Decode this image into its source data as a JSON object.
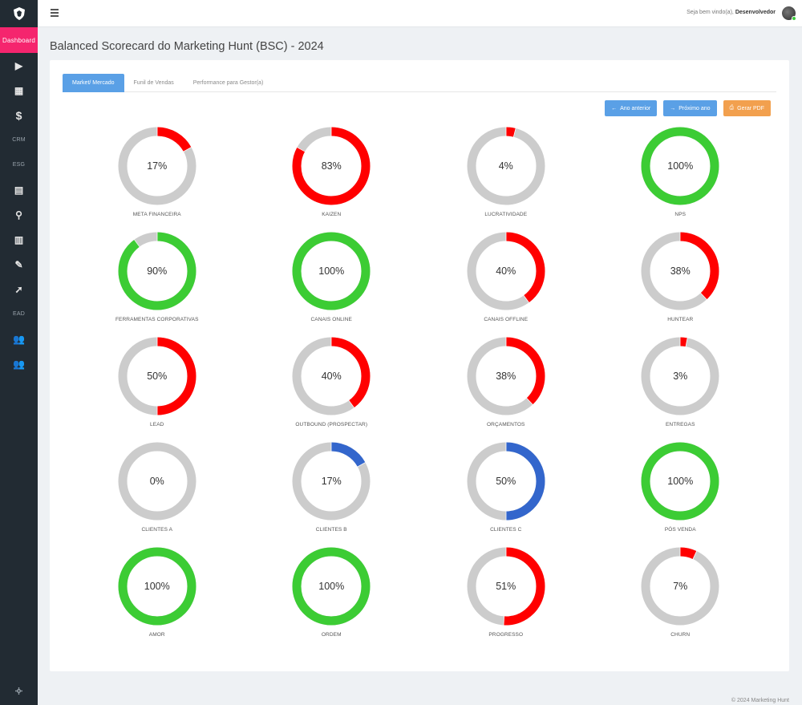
{
  "sidebar": {
    "items": [
      {
        "type": "text",
        "label": "Dashboard",
        "active": true,
        "icon": "dashboard-label"
      },
      {
        "type": "icon",
        "icon": "play-icon",
        "glyph": "▶"
      },
      {
        "type": "icon",
        "icon": "calendar-icon",
        "glyph": "▦"
      },
      {
        "type": "icon",
        "icon": "dollar-icon",
        "glyph": "$"
      },
      {
        "type": "text",
        "label": "CRM"
      },
      {
        "type": "text",
        "label": "ESG"
      },
      {
        "type": "icon",
        "icon": "building-icon",
        "glyph": "▤"
      },
      {
        "type": "icon",
        "icon": "search-icon",
        "glyph": "⚲"
      },
      {
        "type": "icon",
        "icon": "clipboard-icon",
        "glyph": "▥"
      },
      {
        "type": "icon",
        "icon": "pencil-icon",
        "glyph": "✎"
      },
      {
        "type": "icon",
        "icon": "rocket-icon",
        "glyph": "➚"
      },
      {
        "type": "text",
        "label": "EAD"
      },
      {
        "type": "icon",
        "icon": "users-icon",
        "glyph": "👥"
      },
      {
        "type": "icon",
        "icon": "users-icon",
        "glyph": "👥"
      }
    ],
    "bottom_icon": "settings-icon"
  },
  "topbar": {
    "greeting": "Seja bem vindo(a),",
    "user": "Desenvolvedor"
  },
  "page": {
    "title": "Balanced Scorecard do Marketing Hunt (BSC) - 2024"
  },
  "tabs": [
    {
      "label": "Market/ Mercado",
      "active": true
    },
    {
      "label": "Funil de Vendas",
      "active": false
    },
    {
      "label": "Performance para Gestor(a)",
      "active": false
    }
  ],
  "buttons": {
    "prev": "Ano anterior",
    "next": "Próximo ano",
    "pdf": "Gerar PDF"
  },
  "colors": {
    "red": "#ff0000",
    "green": "#3ccc34",
    "blue": "#3366cc",
    "track": "#cccccc"
  },
  "metrics": [
    {
      "label": "META FINANCEIRA",
      "percent": 17,
      "color": "red"
    },
    {
      "label": "KAIZEN",
      "percent": 83,
      "color": "red"
    },
    {
      "label": "LUCRATIVIDADE",
      "percent": 4,
      "color": "red"
    },
    {
      "label": "NPS",
      "percent": 100,
      "color": "green"
    },
    {
      "label": "FERRAMENTAS CORPORATIVAS",
      "percent": 90,
      "color": "green"
    },
    {
      "label": "CANAIS ONLINE",
      "percent": 100,
      "color": "green"
    },
    {
      "label": "CANAIS OFFLINE",
      "percent": 40,
      "color": "red"
    },
    {
      "label": "HUNTEAR",
      "percent": 38,
      "color": "red"
    },
    {
      "label": "LEAD",
      "percent": 50,
      "color": "red"
    },
    {
      "label": "OUTBOUND (PROSPECTAR)",
      "percent": 40,
      "color": "red"
    },
    {
      "label": "ORÇAMENTOS",
      "percent": 38,
      "color": "red"
    },
    {
      "label": "ENTREGAS",
      "percent": 3,
      "color": "red"
    },
    {
      "label": "CLIENTES A",
      "percent": 0,
      "color": "blue"
    },
    {
      "label": "CLIENTES B",
      "percent": 17,
      "color": "blue"
    },
    {
      "label": "CLIENTES C",
      "percent": 50,
      "color": "blue"
    },
    {
      "label": "PÓS VENDA",
      "percent": 100,
      "color": "green"
    },
    {
      "label": "AMOR",
      "percent": 100,
      "color": "green"
    },
    {
      "label": "ORDEM",
      "percent": 100,
      "color": "green"
    },
    {
      "label": "PROGRESSO",
      "percent": 51,
      "color": "red"
    },
    {
      "label": "CHURN",
      "percent": 7,
      "color": "red"
    }
  ],
  "footer": "© 2024 Marketing Hunt"
}
